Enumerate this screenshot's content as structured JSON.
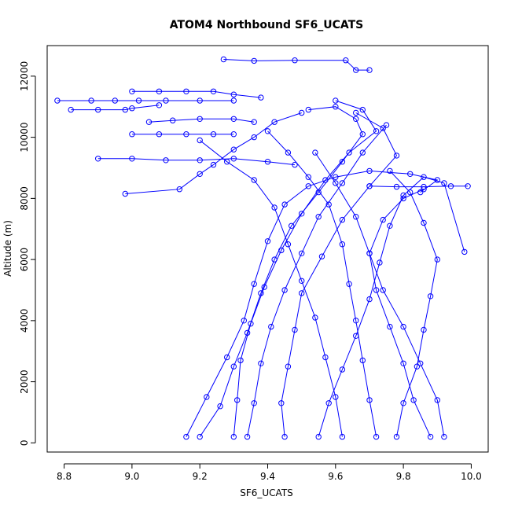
{
  "chart_data": {
    "type": "line",
    "title": "ATOM4 Northbound SF6_UCATS",
    "xlabel": "SF6_UCATS",
    "ylabel": "Altitude (m)",
    "xlim": [
      8.75,
      10.05
    ],
    "ylim": [
      -300,
      13000
    ],
    "xticks": [
      "8.8",
      "9.0",
      "9.2",
      "9.4",
      "9.6",
      "9.8",
      "10.0"
    ],
    "yticks": [
      "0",
      "2000",
      "4000",
      "6000",
      "8000",
      "10000",
      "12000"
    ],
    "grid": false,
    "legend": "none",
    "color": "#0000ff",
    "marker": "open-circle",
    "series": [
      {
        "points": [
          [
            9.16,
            200
          ],
          [
            9.22,
            1500
          ],
          [
            9.28,
            2800
          ],
          [
            9.33,
            4000
          ],
          [
            9.36,
            5200
          ],
          [
            9.4,
            6600
          ],
          [
            9.45,
            7800
          ],
          [
            9.52,
            8400
          ],
          [
            9.6,
            8700
          ],
          [
            9.7,
            8900
          ],
          [
            9.82,
            8800
          ],
          [
            9.9,
            8600
          ],
          [
            9.85,
            8200
          ]
        ]
      },
      {
        "points": [
          [
            9.86,
            8300
          ],
          [
            9.8,
            8000
          ],
          [
            9.74,
            7300
          ],
          [
            9.7,
            6200
          ],
          [
            9.72,
            5000
          ],
          [
            9.76,
            3800
          ],
          [
            9.8,
            2600
          ],
          [
            9.83,
            1400
          ],
          [
            9.88,
            200
          ]
        ]
      },
      {
        "points": [
          [
            9.2,
            200
          ],
          [
            9.26,
            1200
          ],
          [
            9.3,
            2500
          ],
          [
            9.34,
            3600
          ],
          [
            9.38,
            4900
          ],
          [
            9.42,
            6000
          ],
          [
            9.47,
            7100
          ],
          [
            9.55,
            8200
          ],
          [
            9.62,
            9200
          ],
          [
            9.68,
            10100
          ],
          [
            9.66,
            10600
          ],
          [
            9.6,
            11000
          ],
          [
            9.52,
            10900
          ]
        ]
      },
      {
        "points": [
          [
            9.5,
            10800
          ],
          [
            9.42,
            10500
          ],
          [
            9.36,
            10000
          ],
          [
            9.3,
            9600
          ],
          [
            9.24,
            9100
          ],
          [
            9.2,
            8800
          ],
          [
            9.14,
            8300
          ],
          [
            8.98,
            8150
          ]
        ]
      },
      {
        "points": [
          [
            9.3,
            200
          ],
          [
            9.31,
            1400
          ],
          [
            9.32,
            2700
          ],
          [
            9.35,
            3900
          ],
          [
            9.39,
            5100
          ],
          [
            9.44,
            6300
          ],
          [
            9.5,
            7500
          ],
          [
            9.57,
            8600
          ],
          [
            9.64,
            9500
          ],
          [
            9.72,
            10200
          ],
          [
            9.68,
            10900
          ],
          [
            9.6,
            11200
          ]
        ]
      },
      {
        "points": [
          [
            8.78,
            11200
          ],
          [
            8.88,
            11200
          ],
          [
            8.95,
            11200
          ],
          [
            9.02,
            11200
          ],
          [
            9.1,
            11200
          ],
          [
            9.2,
            11200
          ],
          [
            9.3,
            11200
          ]
        ]
      },
      {
        "points": [
          [
            8.82,
            10900
          ],
          [
            8.9,
            10900
          ],
          [
            8.98,
            10900
          ],
          [
            9.0,
            10950
          ],
          [
            9.08,
            11050
          ]
        ]
      },
      {
        "points": [
          [
            9.0,
            11500
          ],
          [
            9.08,
            11500
          ],
          [
            9.16,
            11500
          ],
          [
            9.24,
            11500
          ],
          [
            9.3,
            11400
          ],
          [
            9.38,
            11300
          ]
        ]
      },
      {
        "points": [
          [
            9.05,
            10500
          ],
          [
            9.12,
            10550
          ],
          [
            9.2,
            10600
          ],
          [
            9.3,
            10600
          ],
          [
            9.36,
            10500
          ]
        ]
      },
      {
        "points": [
          [
            9.0,
            10100
          ],
          [
            9.08,
            10100
          ],
          [
            9.16,
            10100
          ],
          [
            9.24,
            10100
          ],
          [
            9.3,
            10100
          ]
        ]
      },
      {
        "points": [
          [
            8.9,
            9300
          ],
          [
            9.0,
            9300
          ],
          [
            9.1,
            9250
          ],
          [
            9.2,
            9250
          ],
          [
            9.3,
            9300
          ],
          [
            9.4,
            9200
          ],
          [
            9.48,
            9100
          ]
        ]
      },
      {
        "points": [
          [
            9.27,
            12550
          ],
          [
            9.36,
            12500
          ],
          [
            9.48,
            12520
          ],
          [
            9.63,
            12520
          ],
          [
            9.66,
            12200
          ],
          [
            9.7,
            12200
          ]
        ]
      },
      {
        "points": [
          [
            9.7,
            8400
          ],
          [
            9.78,
            8380
          ],
          [
            9.86,
            8380
          ],
          [
            9.94,
            8400
          ],
          [
            9.99,
            8400
          ]
        ]
      },
      {
        "points": [
          [
            9.45,
            200
          ],
          [
            9.44,
            1300
          ],
          [
            9.46,
            2500
          ],
          [
            9.48,
            3700
          ],
          [
            9.5,
            4900
          ],
          [
            9.56,
            6100
          ],
          [
            9.62,
            7300
          ],
          [
            9.7,
            8400
          ],
          [
            9.78,
            9400
          ],
          [
            9.74,
            10300
          ],
          [
            9.66,
            10800
          ]
        ]
      },
      {
        "points": [
          [
            9.55,
            200
          ],
          [
            9.58,
            1300
          ],
          [
            9.62,
            2400
          ],
          [
            9.66,
            3500
          ],
          [
            9.7,
            4700
          ],
          [
            9.73,
            5900
          ],
          [
            9.76,
            7100
          ],
          [
            9.8,
            8100
          ],
          [
            9.86,
            8700
          ],
          [
            9.92,
            8500
          ],
          [
            9.98,
            6250
          ]
        ]
      },
      {
        "points": [
          [
            9.62,
            200
          ],
          [
            9.6,
            1500
          ],
          [
            9.57,
            2800
          ],
          [
            9.54,
            4100
          ],
          [
            9.5,
            5300
          ],
          [
            9.46,
            6500
          ],
          [
            9.42,
            7700
          ],
          [
            9.36,
            8600
          ],
          [
            9.28,
            9200
          ],
          [
            9.2,
            9900
          ]
        ]
      },
      {
        "points": [
          [
            9.72,
            200
          ],
          [
            9.7,
            1400
          ],
          [
            9.68,
            2700
          ],
          [
            9.66,
            4000
          ],
          [
            9.64,
            5200
          ],
          [
            9.62,
            6500
          ],
          [
            9.58,
            7800
          ],
          [
            9.52,
            8700
          ],
          [
            9.46,
            9500
          ],
          [
            9.4,
            10200
          ]
        ]
      },
      {
        "points": [
          [
            9.78,
            200
          ],
          [
            9.8,
            1300
          ],
          [
            9.84,
            2500
          ],
          [
            9.86,
            3700
          ],
          [
            9.88,
            4800
          ],
          [
            9.9,
            6000
          ],
          [
            9.86,
            7200
          ],
          [
            9.82,
            8200
          ],
          [
            9.76,
            8900
          ]
        ]
      },
      {
        "points": [
          [
            9.34,
            200
          ],
          [
            9.36,
            1300
          ],
          [
            9.38,
            2600
          ],
          [
            9.41,
            3800
          ],
          [
            9.45,
            5000
          ],
          [
            9.5,
            6200
          ],
          [
            9.55,
            7400
          ],
          [
            9.62,
            8500
          ],
          [
            9.68,
            9500
          ],
          [
            9.75,
            10400
          ]
        ]
      },
      {
        "points": [
          [
            9.92,
            200
          ],
          [
            9.9,
            1400
          ],
          [
            9.85,
            2600
          ],
          [
            9.8,
            3800
          ],
          [
            9.74,
            5000
          ],
          [
            9.7,
            6200
          ],
          [
            9.66,
            7400
          ],
          [
            9.6,
            8500
          ],
          [
            9.54,
            9500
          ]
        ]
      }
    ]
  }
}
